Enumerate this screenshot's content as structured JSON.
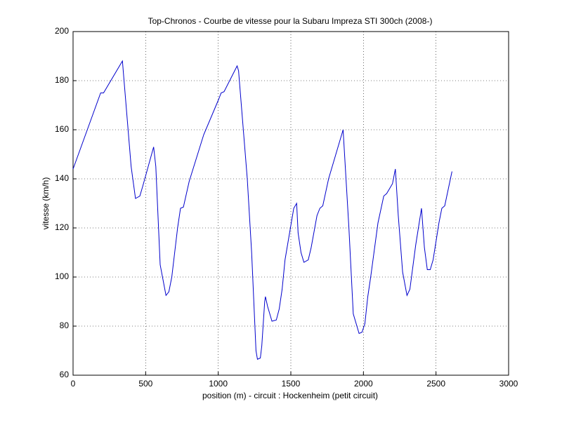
{
  "chart_data": {
    "type": "line",
    "title": "Top-Chronos - Courbe de vitesse pour la Subaru Impreza STI 300ch (2008-)",
    "x_label": "position (m) - circuit : Hockenheim (petit circuit)",
    "y_label": "vitesse (km/h)",
    "x": [
      0,
      190,
      210,
      340,
      400,
      430,
      460,
      480,
      555,
      570,
      600,
      640,
      660,
      680,
      700,
      720,
      740,
      760,
      800,
      900,
      1000,
      1020,
      1040,
      1130,
      1140,
      1200,
      1230,
      1260,
      1270,
      1290,
      1300,
      1320,
      1325,
      1340,
      1370,
      1400,
      1420,
      1440,
      1460,
      1500,
      1520,
      1540,
      1550,
      1570,
      1590,
      1620,
      1640,
      1680,
      1700,
      1720,
      1760,
      1860,
      1880,
      1900,
      1930,
      1970,
      1990,
      2010,
      2030,
      2050,
      2100,
      2140,
      2160,
      2200,
      2220,
      2240,
      2270,
      2300,
      2320,
      2360,
      2400,
      2420,
      2440,
      2460,
      2480,
      2520,
      2540,
      2560,
      2610
    ],
    "series": [
      {
        "name": "vitesse",
        "color": "#0000cc",
        "values": [
          144,
          175,
          175,
          188,
          145,
          132,
          133,
          137,
          153,
          145,
          105,
          92.5,
          94,
          100,
          110,
          120,
          128,
          128.5,
          139,
          158,
          172,
          175,
          175.5,
          186,
          184,
          140,
          110,
          70,
          66.5,
          67,
          72,
          90,
          92,
          88,
          82,
          82.5,
          87,
          95,
          107,
          121,
          128,
          130,
          118,
          110,
          106,
          107,
          112,
          125,
          128,
          129,
          140,
          160,
          140,
          120,
          85,
          77,
          77.5,
          81,
          92,
          100,
          122,
          133,
          134,
          138,
          144,
          125,
          102,
          92.5,
          95,
          113,
          128,
          112,
          103,
          103,
          107,
          122,
          128,
          129,
          143
        ]
      }
    ],
    "xlim": [
      0,
      3000
    ],
    "xticks": [
      0,
      500,
      1000,
      1500,
      2000,
      2500,
      3000
    ],
    "ylim": [
      60,
      200
    ],
    "yticks": [
      60,
      80,
      100,
      120,
      140,
      160,
      180,
      200
    ],
    "grid": true
  }
}
